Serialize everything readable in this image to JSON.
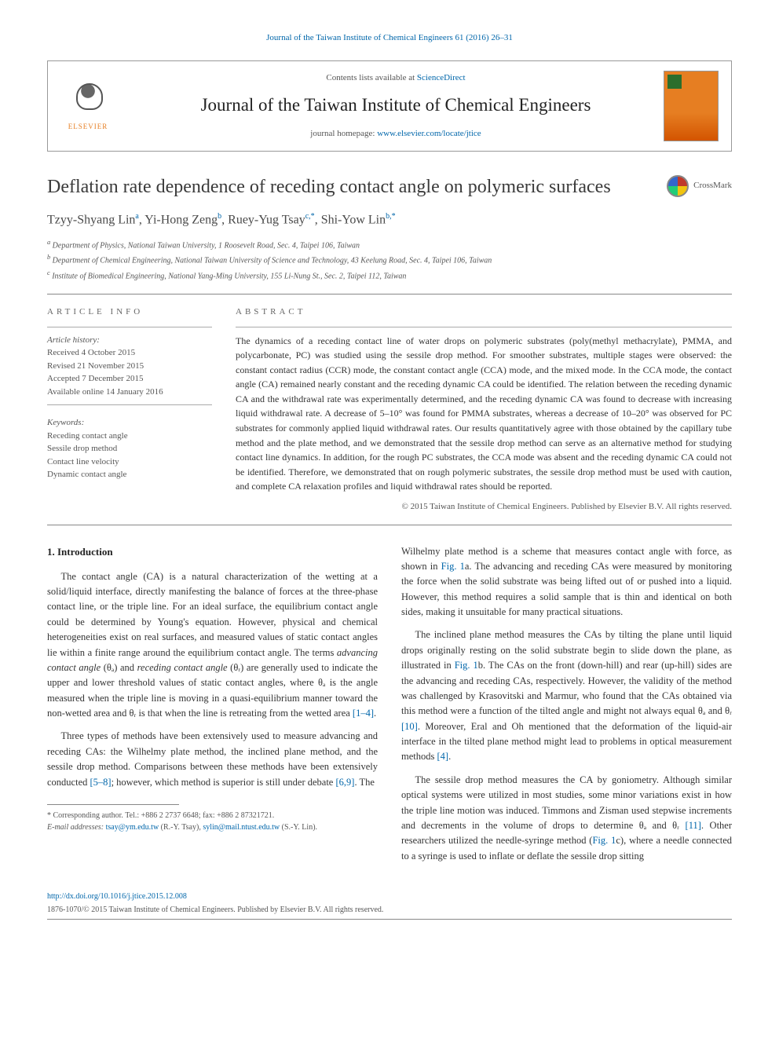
{
  "top_citation": "Journal of the Taiwan Institute of Chemical Engineers 61 (2016) 26–31",
  "header": {
    "contents_prefix": "Contents lists available at ",
    "contents_link": "ScienceDirect",
    "journal_name": "Journal of the Taiwan Institute of Chemical Engineers",
    "homepage_prefix": "journal homepage: ",
    "homepage_link": "www.elsevier.com/locate/jtice",
    "elsevier_label": "ELSEVIER"
  },
  "crossmark_label": "CrossMark",
  "title": "Deflation rate dependence of receding contact angle on polymeric surfaces",
  "authors_html": "Tzyy-Shyang Lin",
  "authors": [
    {
      "name": "Tzyy-Shyang Lin",
      "sup": "a"
    },
    {
      "name": "Yi-Hong Zeng",
      "sup": "b"
    },
    {
      "name": "Ruey-Yug Tsay",
      "sup": "c,*"
    },
    {
      "name": "Shi-Yow Lin",
      "sup": "b,*"
    }
  ],
  "affiliations": {
    "a": "Department of Physics, National Taiwan University, 1 Roosevelt Road, Sec. 4, Taipei 106, Taiwan",
    "b": "Department of Chemical Engineering, National Taiwan University of Science and Technology, 43 Keelung Road, Sec. 4, Taipei 106, Taiwan",
    "c": "Institute of Biomedical Engineering, National Yang-Ming University, 155 Li-Nung St., Sec. 2, Taipei 112, Taiwan"
  },
  "info_heading": "ARTICLE INFO",
  "abstract_heading": "ABSTRACT",
  "history_label": "Article history:",
  "history": {
    "received": "Received 4 October 2015",
    "revised": "Revised 21 November 2015",
    "accepted": "Accepted 7 December 2015",
    "online": "Available online 14 January 2016"
  },
  "keywords_label": "Keywords:",
  "keywords": [
    "Receding contact angle",
    "Sessile drop method",
    "Contact line velocity",
    "Dynamic contact angle"
  ],
  "abstract_text": "The dynamics of a receding contact line of water drops on polymeric substrates (poly(methyl methacrylate), PMMA, and polycarbonate, PC) was studied using the sessile drop method. For smoother substrates, multiple stages were observed: the constant contact radius (CCR) mode, the constant contact angle (CCA) mode, and the mixed mode. In the CCA mode, the contact angle (CA) remained nearly constant and the receding dynamic CA could be identified. The relation between the receding dynamic CA and the withdrawal rate was experimentally determined, and the receding dynamic CA was found to decrease with increasing liquid withdrawal rate. A decrease of 5–10° was found for PMMA substrates, whereas a decrease of 10–20° was observed for PC substrates for commonly applied liquid withdrawal rates. Our results quantitatively agree with those obtained by the capillary tube method and the plate method, and we demonstrated that the sessile drop method can serve as an alternative method for studying contact line dynamics. In addition, for the rough PC substrates, the CCA mode was absent and the receding dynamic CA could not be identified. Therefore, we demonstrated that on rough polymeric substrates, the sessile drop method must be used with caution, and complete CA relaxation profiles and liquid withdrawal rates should be reported.",
  "abstract_copyright": "© 2015 Taiwan Institute of Chemical Engineers. Published by Elsevier B.V. All rights reserved.",
  "intro_heading": "1. Introduction",
  "intro": {
    "p1_a": "The contact angle (CA) is a natural characterization of the wetting at a solid/liquid interface, directly manifesting the balance of forces at the three-phase contact line, or the triple line. For an ideal surface, the equilibrium contact angle could be determined by Young's equation. However, physical and chemical heterogeneities exist on real surfaces, and measured values of static contact angles lie within a finite range around the equilibrium contact angle. The terms ",
    "p1_adv": "advancing contact angle",
    "p1_b": " (θₐ) and ",
    "p1_rec": "receding contact angle",
    "p1_c": " (θᵣ) are generally used to indicate the upper and lower threshold values of static contact angles, where θₐ is the angle measured when the triple line is moving in a quasi-equilibrium manner toward the non-wetted area and θᵣ is that when the line is retreating from the wetted area ",
    "p1_ref": "[1–4]",
    "p1_d": ".",
    "p2_a": "Three types of methods have been extensively used to measure advancing and receding CAs: the Wilhelmy plate method, the inclined plane method, and the sessile drop method. Comparisons between these methods have been extensively conducted ",
    "p2_ref1": "[5–8]",
    "p2_b": "; however, which method is superior is still under debate ",
    "p2_ref2": "[6,9]",
    "p2_c": ". The ",
    "p3_a": "Wilhelmy plate method is a scheme that measures contact angle with force, as shown in ",
    "p3_fig": "Fig. 1",
    "p3_b": "a. The advancing and receding CAs were measured by monitoring the force when the solid substrate was being lifted out of or pushed into a liquid. However, this method requires a solid sample that is thin and identical on both sides, making it unsuitable for many practical situations.",
    "p4_a": "The inclined plane method measures the CAs by tilting the plane until liquid drops originally resting on the solid substrate begin to slide down the plane, as illustrated in ",
    "p4_fig": "Fig. 1",
    "p4_b": "b. The CAs on the front (down-hill) and rear (up-hill) sides are the advancing and receding CAs, respectively. However, the validity of the method was challenged by Krasovitski and Marmur, who found that the CAs obtained via this method were a function of the tilted angle and might not always equal θₐ and θᵣ ",
    "p4_ref1": "[10]",
    "p4_c": ". Moreover, Eral and Oh mentioned that the deformation of the liquid-air interface in the tilted plane method might lead to problems in optical measurement methods ",
    "p4_ref2": "[4]",
    "p4_d": ".",
    "p5_a": "The sessile drop method measures the CA by goniometry. Although similar optical systems were utilized in most studies, some minor variations exist in how the triple line motion was induced. Timmons and Zisman used stepwise increments and decrements in the volume of drops to determine θₐ and θᵣ ",
    "p5_ref": "[11]",
    "p5_b": ". Other researchers utilized the needle-syringe method (",
    "p5_fig": "Fig. 1",
    "p5_c": "c), where a needle connected to a syringe is used to inflate or deflate the sessile drop sitting"
  },
  "footnote": {
    "corr_label": "* Corresponding author. Tel.: +886 2 2737 6648; fax: +886 2 87321721.",
    "email_label": "E-mail addresses:",
    "email1": "tsay@ym.edu.tw",
    "email1_who": " (R.-Y. Tsay), ",
    "email2": "sylin@mail.ntust.edu.tw",
    "email2_who": " (S.-Y. Lin)."
  },
  "doi": "http://dx.doi.org/10.1016/j.jtice.2015.12.008",
  "issn_line": "1876-1070/© 2015 Taiwan Institute of Chemical Engineers. Published by Elsevier B.V. All rights reserved.",
  "colors": {
    "link": "#0066aa",
    "text": "#333333",
    "muted": "#555555",
    "rule": "#888888",
    "elsevier_orange": "#e67e22"
  }
}
